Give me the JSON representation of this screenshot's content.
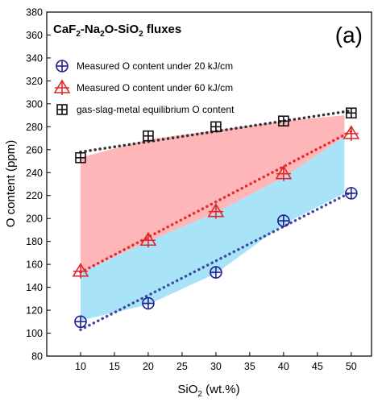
{
  "chart_data": {
    "type": "scatter",
    "title_parts": {
      "t1": "CaF",
      "s1": "2",
      "t2": "-Na",
      "s2": "2",
      "t3": "O-SiO",
      "s3": "2",
      "t4": " fluxes"
    },
    "panel_label": "(a)",
    "xlabel_parts": {
      "main": "SiO",
      "sub": "2",
      "rest": " (wt.%)"
    },
    "ylabel": "O content (ppm)",
    "xlim": [
      5,
      53
    ],
    "ylim": [
      80,
      380
    ],
    "xticks": [
      10,
      15,
      20,
      25,
      30,
      35,
      40,
      45,
      50
    ],
    "yticks": [
      80,
      100,
      120,
      140,
      160,
      180,
      200,
      220,
      240,
      260,
      280,
      300,
      320,
      340,
      360,
      380
    ],
    "x": [
      10,
      20,
      30,
      40,
      50
    ],
    "series": [
      {
        "name": "Measured O content under 20 kJ/cm",
        "marker": "circle-plus",
        "color": "#1f1f8f",
        "values": [
          110,
          126,
          153,
          198,
          222
        ],
        "trend": {
          "x": [
            10,
            50
          ],
          "y": [
            103,
            223
          ],
          "color": "#3c4aa3"
        }
      },
      {
        "name": "Measured O content under 60 kJ/cm",
        "marker": "triangle-plus",
        "color": "#e0262a",
        "values": [
          154,
          181,
          206,
          239,
          274
        ],
        "trend": {
          "x": [
            10,
            50
          ],
          "y": [
            153,
            276
          ],
          "color": "#e52a2a"
        }
      },
      {
        "name": "gas-slag-metal equilibrium O content",
        "marker": "square-plus",
        "color": "#111111",
        "values": [
          253,
          272,
          280,
          285,
          292
        ],
        "trend": {
          "x": [
            10,
            50
          ],
          "y": [
            258,
            294
          ],
          "color": "#333333"
        }
      }
    ],
    "bands": [
      {
        "fill": "#ffb6b9",
        "upper": {
          "x": [
            10,
            20,
            30,
            40,
            49
          ],
          "y": [
            253,
            269,
            277,
            285,
            290
          ]
        },
        "lower": {
          "x": [
            10,
            20,
            30,
            40,
            49
          ],
          "y": [
            153,
            180,
            205,
            236,
            271
          ]
        }
      },
      {
        "fill": "#a9e3f7",
        "upper": {
          "x": [
            10,
            20,
            30,
            40,
            49
          ],
          "y": [
            153,
            180,
            205,
            236,
            271
          ]
        },
        "lower": {
          "x": [
            10,
            20,
            30,
            40,
            49
          ],
          "y": [
            111,
            125,
            152,
            195,
            222
          ]
        }
      }
    ],
    "legend_position": "top-left",
    "grid": false
  }
}
